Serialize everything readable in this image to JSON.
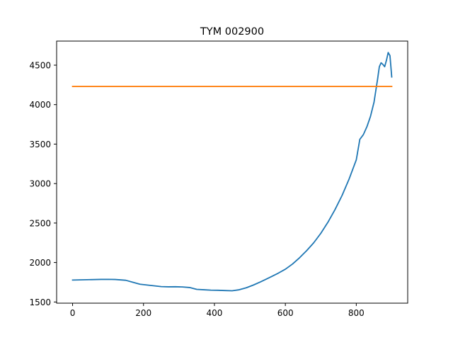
{
  "chart_data": {
    "type": "line",
    "title": "TYM 002900",
    "xlabel": "",
    "ylabel": "",
    "xlim": [
      -45,
      945
    ],
    "ylim": [
      1485,
      4805
    ],
    "grid": false,
    "x_ticks": [
      0,
      200,
      400,
      600,
      800
    ],
    "y_ticks": [
      1500,
      2000,
      2500,
      3000,
      3500,
      4000,
      4500
    ],
    "series": [
      {
        "color": "#1f77b4",
        "x": [
          0,
          20,
          40,
          60,
          80,
          100,
          120,
          150,
          170,
          190,
          210,
          230,
          250,
          270,
          290,
          310,
          330,
          350,
          370,
          390,
          410,
          430,
          450,
          470,
          490,
          510,
          530,
          560,
          580,
          600,
          620,
          640,
          660,
          680,
          700,
          720,
          740,
          760,
          780,
          800,
          810,
          820,
          830,
          840,
          850,
          860,
          865,
          870,
          875,
          880,
          885,
          890,
          895,
          900
        ],
        "y": [
          1778,
          1780,
          1782,
          1784,
          1786,
          1787,
          1785,
          1775,
          1750,
          1725,
          1715,
          1705,
          1695,
          1692,
          1693,
          1690,
          1683,
          1660,
          1655,
          1650,
          1648,
          1645,
          1642,
          1655,
          1680,
          1715,
          1755,
          1820,
          1865,
          1915,
          1980,
          2060,
          2150,
          2250,
          2370,
          2510,
          2670,
          2850,
          3060,
          3300,
          3560,
          3620,
          3720,
          3850,
          4030,
          4320,
          4480,
          4530,
          4510,
          4480,
          4560,
          4660,
          4620,
          4350
        ]
      },
      {
        "color": "#ff7f0e",
        "x": [
          0,
          900
        ],
        "y": [
          4230,
          4230
        ]
      }
    ]
  }
}
